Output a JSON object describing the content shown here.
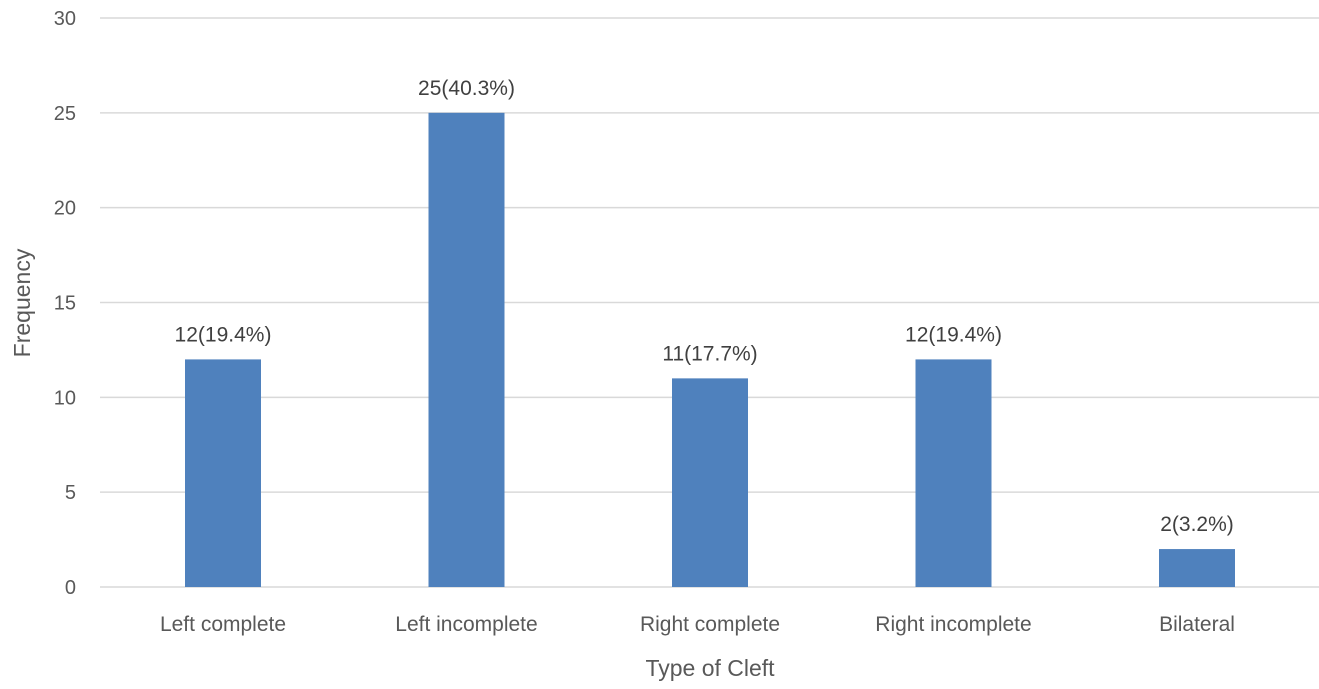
{
  "chart_data": {
    "type": "bar",
    "categories": [
      "Left complete",
      "Left incomplete",
      "Right complete",
      "Right incomplete",
      "Bilateral"
    ],
    "values": [
      12,
      25,
      11,
      12,
      2
    ],
    "data_labels": [
      "12(19.4%)",
      "25(40.3%)",
      "11(17.7%)",
      "12(19.4%)",
      "2(3.2%)"
    ],
    "title": "",
    "xlabel": "Type of Cleft",
    "ylabel": "Frequency",
    "ylim": [
      0,
      30
    ],
    "yticks": [
      0,
      5,
      10,
      15,
      20,
      25,
      30
    ],
    "grid": true,
    "legend": "none",
    "bar_color": "#4f81bd"
  }
}
